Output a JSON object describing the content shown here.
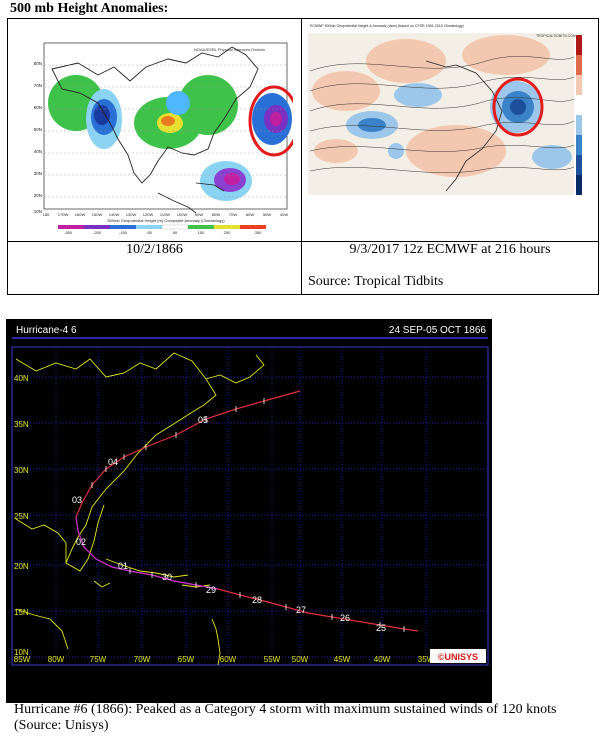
{
  "heading": "500 mb Height Anomalies:",
  "left_panel": {
    "map_title_line1": "NOAA/ESRL Physical Sciences Division",
    "lat_labels": [
      "80N",
      "70N",
      "60N",
      "50N",
      "40N",
      "30N",
      "20N",
      "10N"
    ],
    "lon_labels": [
      "180",
      "170W",
      "160W",
      "150W",
      "140W",
      "130W",
      "120W",
      "110W",
      "100W",
      "90W",
      "80W",
      "70W",
      "60W",
      "50W",
      "40W"
    ],
    "footer_line": "500mb Geopotential Height (m) Composite Anomaly (Climatology)",
    "scale_labels": [
      "-350",
      "-250",
      "-150",
      "-50",
      "50",
      "150",
      "250",
      "350"
    ],
    "date_caption": "10/2/1866"
  },
  "right_panel": {
    "map_title": "ECMWF 500mb Geopotential Height & Anomaly (dam) (based on CFSR 1981-2010 Climatology)",
    "brand": "TROPICALTIDBITS.COM",
    "date_caption": "9/3/2017 12z ECMWF at 216 hours",
    "source": "Source: Tropical Tidbits"
  },
  "track_panel": {
    "title_left": "Hurricane-4  6",
    "title_right": "24 SEP-05 OCT 1866",
    "lat_labels": [
      "40N",
      "35N",
      "30N",
      "25N",
      "20N",
      "15N",
      "10N"
    ],
    "lon_labels": [
      "85W",
      "80W",
      "75W",
      "70W",
      "65W",
      "60W",
      "55W",
      "50W",
      "45W",
      "40W",
      "35W"
    ],
    "day_labels": [
      "05",
      "04",
      "03",
      "02",
      "01",
      "30",
      "29",
      "28",
      "27",
      "26",
      "25"
    ],
    "logo": "©UNISYS"
  },
  "caption": "Hurricane #6 (1866): Peaked as a Category 4 storm with maximum sustained winds of 120 knots (Source: Unisys)",
  "colors": {
    "highlight_circle": "#e31b1b",
    "track_line": "#e0303a",
    "track_early": "#c030d0"
  }
}
